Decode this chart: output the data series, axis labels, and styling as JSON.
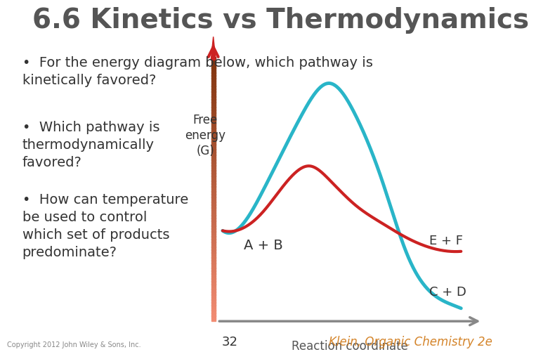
{
  "title": "6.6 Kinetics vs Thermodynamics",
  "title_color": "#555555",
  "title_fontsize": 28,
  "background_color": "#ffffff",
  "bullet_points": [
    "For the energy diagram below, which pathway is\nkinetically favored?",
    "Which pathway is\nthermodynamically\nfavored?",
    "How can temperature\nbe used to control\nwhich set of products\npredominate?"
  ],
  "bullet_color": "#333333",
  "bullet_fontsize": 14,
  "ylabel": "Free\nenergy\n(G)",
  "xlabel": "Reaction coordinate",
  "axis_label_color": "#333333",
  "cyan_color": "#29b5c8",
  "red_color": "#cc2222",
  "label_AB": "A + B",
  "label_EF": "E + F",
  "label_CD": "C + D",
  "copyright_text": "Copyright 2012 John Wiley & Sons, Inc.",
  "page_number": "32",
  "klein_text": "Klein, Organic Chemistry 2e",
  "klein_color": "#d4842a"
}
